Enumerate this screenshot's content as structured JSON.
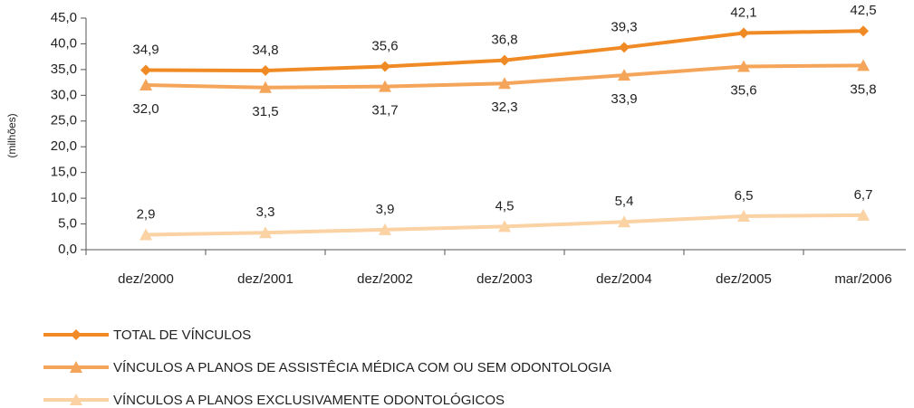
{
  "chart_data": {
    "type": "line",
    "y_label": "(milhões)",
    "categories": [
      "dez/2000",
      "dez/2001",
      "dez/2002",
      "dez/2003",
      "dez/2004",
      "dez/2005",
      "mar/2006"
    ],
    "series": [
      {
        "name": "TOTAL DE VÍNCULOS",
        "color": "#f08a24",
        "marker": "diamond",
        "values": [
          34.9,
          34.8,
          35.6,
          36.8,
          39.3,
          42.1,
          42.5
        ],
        "value_labels": [
          "34,9",
          "34,8",
          "35,6",
          "36,8",
          "39,3",
          "42,1",
          "42,5"
        ]
      },
      {
        "name": "VÍNCULOS A PLANOS DE ASSISTÊCIA MÉDICA COM OU SEM ODONTOLOGIA",
        "color": "#f5a55a",
        "marker": "triangle",
        "values": [
          32.0,
          31.5,
          31.7,
          32.3,
          33.9,
          35.6,
          35.8
        ],
        "value_labels": [
          "32,0",
          "31,5",
          "31,7",
          "32,3",
          "33,9",
          "35,6",
          "35,8"
        ]
      },
      {
        "name": "VÍNCULOS A PLANOS EXCLUSIVAMENTE ODONTOLÓGICOS",
        "color": "#fbd2a3",
        "marker": "triangle",
        "values": [
          2.9,
          3.3,
          3.9,
          4.5,
          5.4,
          6.5,
          6.7
        ],
        "value_labels": [
          "2,9",
          "3,3",
          "3,9",
          "4,5",
          "5,4",
          "6,5",
          "6,7"
        ]
      }
    ],
    "ylim": [
      0,
      45
    ],
    "yticks": [
      {
        "value": 0,
        "label": "0,0"
      },
      {
        "value": 5,
        "label": "5,0"
      },
      {
        "value": 10,
        "label": "10,0"
      },
      {
        "value": 15,
        "label": "15,0"
      },
      {
        "value": 20,
        "label": "20,0"
      },
      {
        "value": 25,
        "label": "25,0"
      },
      {
        "value": 30,
        "label": "30,0"
      },
      {
        "value": 35,
        "label": "35,0"
      },
      {
        "value": 40,
        "label": "40,0"
      },
      {
        "value": 45,
        "label": "45,0"
      }
    ],
    "label_positions": [
      "above",
      "below",
      "above"
    ]
  }
}
